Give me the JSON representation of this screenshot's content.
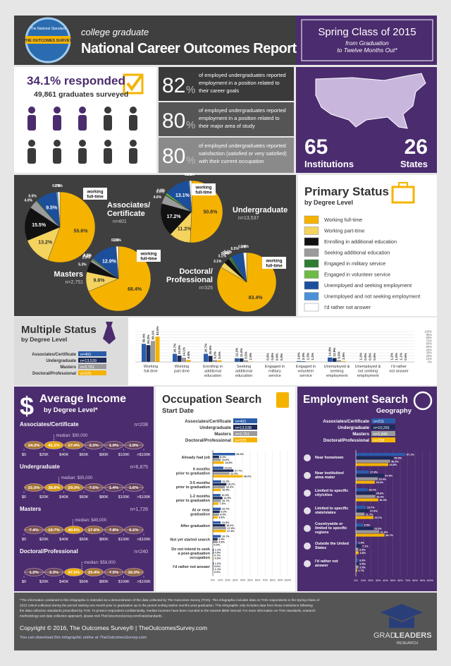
{
  "header": {
    "logo_top": "The National Standard",
    "logo_name": "THE OUTCOMES SURVEY",
    "kicker": "college graduate",
    "title": "National Career Outcomes Report",
    "cohort": "Spring Class of 2015",
    "cohort_sub": [
      "from Graduation",
      "to Twelve Months Out*"
    ]
  },
  "response": {
    "rate_text": "34.1% responded",
    "surveyed": "49,861 graduates surveyed"
  },
  "stats": {
    "items": [
      {
        "value": 82,
        "unit": "%",
        "lines": [
          "of employed undergraduates reported",
          "employment in a position related to",
          "their career goals"
        ]
      },
      {
        "value": 80,
        "unit": "%",
        "lines": [
          "of employed undergraduates reported",
          "employment in a position related to",
          "their major area of study"
        ]
      },
      {
        "value": 80,
        "unit": "%",
        "lines": [
          "of employed undergraduates reported",
          "satisfaction (satisfied or very satisfied)",
          "with their current occupation"
        ]
      }
    ]
  },
  "reach": {
    "institutions": 65,
    "institutions_label": "Institutions",
    "states": 26,
    "states_label": "States"
  },
  "primary_status": {
    "type": "pie",
    "title": "Primary Status",
    "subtitle": "by Degree Level",
    "callout": [
      "working",
      "full-time"
    ],
    "items": [
      {
        "name": "Working full-time",
        "color": "#f5b300"
      },
      {
        "name": "Working part-time",
        "color": "#f4d35e"
      },
      {
        "name": "Enrolling in additional education",
        "color": "#111111"
      },
      {
        "name": "Seeking additional education",
        "color": "#9b9b9b"
      },
      {
        "name": "Engaged in military service",
        "color": "#2e7d32"
      },
      {
        "name": "Engaged in volunteer service",
        "color": "#6dbb45"
      },
      {
        "name": "Unemployed and seeking employment",
        "color": "#1b4f9c"
      },
      {
        "name": "Unemployed and not seeking employment",
        "color": "#4a90d9"
      },
      {
        "name": "I'd rather not answer",
        "color": "#ffffff"
      }
    ],
    "pies": [
      {
        "name": [
          "Associates/",
          "Certificate"
        ],
        "n": "n=401",
        "values": [
          55.6,
          13.2,
          15.5,
          4.0,
          0.5,
          null,
          9.5,
          0.7,
          1.0
        ],
        "value_labels": [
          "55.6%",
          "13.2%",
          "15.5%",
          "4.0%",
          "0.5%",
          null,
          "9.5%",
          "0.7%",
          "1.0%"
        ]
      },
      {
        "name": [
          "Undergraduate"
        ],
        "n": "n=13,537",
        "values": [
          50.8,
          11.2,
          17.2,
          4.6,
          0.5,
          0.9,
          13.1,
          0.6,
          1.1
        ],
        "value_labels": [
          "50.8%",
          "11.2%",
          "17.2%",
          "4.6%",
          "0.5%",
          "0.9%",
          "13.1%",
          "0.6%",
          "1.1%"
        ]
      },
      {
        "name": [
          "Masters"
        ],
        "n": "n=2,751",
        "values": [
          68.4,
          9.8,
          5.3,
          1.3,
          0.2,
          0.5,
          12.9,
          0.3,
          1.1
        ],
        "value_labels": [
          "68.4%",
          "9.8%",
          "5.3%",
          "1.3%",
          "0.2%",
          "0.5%",
          "12.9%",
          "0.3%",
          "1.1%"
        ]
      },
      {
        "name": [
          "Doctoral/",
          "Professional"
        ],
        "n": "n=325",
        "values": [
          83.4,
          3.1,
          3.1,
          0.3,
          1.2,
          0.3,
          6.5,
          0.3,
          1.8
        ],
        "value_labels": [
          "83.4%",
          "3.1%",
          "3.1%",
          "0.3%",
          "1.2%",
          "0.3%",
          "6.5%",
          "0.3%",
          "1.8%"
        ]
      }
    ]
  },
  "multiple_status": {
    "type": "bar",
    "title": "Multiple Status",
    "subtitle": "by Degree Level",
    "ylim": [
      0,
      100
    ],
    "yticks": [
      {
        "value": 0,
        "label": "0%"
      },
      {
        "value": 10,
        "label": "10%"
      },
      {
        "value": 20,
        "label": "20%"
      },
      {
        "value": 30,
        "label": "30%"
      },
      {
        "value": 40,
        "label": "40%"
      },
      {
        "value": 50,
        "label": "50%"
      },
      {
        "value": 60,
        "label": "60%"
      },
      {
        "value": 70,
        "label": "70%"
      },
      {
        "value": 80,
        "label": "80%"
      },
      {
        "value": 90,
        "label": "90%"
      },
      {
        "value": 100,
        "label": "100%"
      }
    ],
    "categories": [
      [
        "Working",
        "full-time"
      ],
      [
        "Working",
        "part-time"
      ],
      [
        "Enrolling in",
        "additional",
        "education"
      ],
      [
        "Seeking",
        "additional",
        "education"
      ],
      [
        "Engaged in",
        "military",
        "service"
      ],
      [
        "Engaged in",
        "volunteer",
        "service"
      ],
      [
        "Unemployed &",
        "seeking",
        "employment"
      ],
      [
        "Unemployed &",
        "not seeking",
        "employment"
      ],
      [
        "I'd rather",
        "not answer"
      ]
    ],
    "series": [
      {
        "name": "Associates/Certificate",
        "n": "n=401",
        "color": "#2a5caa",
        "values": [
          59.4,
          26.7,
          26.7,
          12.2,
          0.5,
          3.0,
          14.8,
          1.2,
          1.2
        ],
        "value_labels": [
          "59.4%",
          "26.7%",
          "26.7%",
          "12.2%",
          "0.5%",
          "3.0%",
          "14.8%",
          "1.2%",
          "1.2%"
        ]
      },
      {
        "name": "Undergraduate",
        "n": "n=13,539",
        "color": "#1c2b57",
        "values": [
          55.3,
          20.8,
          20.0,
          11.6,
          0.8,
          2.0,
          12.9,
          0.5,
          1.0
        ],
        "value_labels": [
          "55.3%",
          "20.8%",
          "20.0%",
          "11.6%",
          "0.8%",
          "2.0%",
          "12.9%",
          "0.5%",
          "1.0%"
        ]
      },
      {
        "name": "Masters",
        "n": "n=2,751",
        "color": "#9a9a9a",
        "values": [
          69.1,
          14.1,
          6.2,
          5.5,
          0.0,
          1.5,
          5.9,
          0.5,
          1.1
        ],
        "value_labels": [
          "69.1%",
          "14.1%",
          "6.2%",
          "5.5%",
          "0.0%",
          "1.5%",
          "5.9%",
          "0.5%",
          "1.1%"
        ]
      },
      {
        "name": "Doctoral/Professional",
        "n": "n=325",
        "color": "#f5b300",
        "values": [
          83.5,
          6.8,
          5.5,
          1.5,
          0.0,
          1.2,
          2.8,
          0.5,
          0.6
        ],
        "value_labels": [
          "83.5%",
          "6.8%",
          "5.5%",
          "1.5%",
          "0.0%",
          "1.2%",
          "2.8%",
          "0.5%",
          "0.6%"
        ]
      }
    ]
  },
  "income": {
    "type": "histogram",
    "title_icon": "$",
    "title": "Average Income",
    "subtitle": "by Degree Level*",
    "bins": [
      0,
      20000,
      40000,
      60000,
      80000,
      100000,
      120000
    ],
    "xlim": [
      0,
      120000
    ],
    "xticks": [
      {
        "value": 0,
        "label": "$0"
      },
      {
        "value": 20000,
        "label": "$20K"
      },
      {
        "value": 40000,
        "label": "$40K"
      },
      {
        "value": 60000,
        "label": "$60K"
      },
      {
        "value": 80000,
        "label": "$80K"
      },
      {
        "value": 100000,
        "label": "$100K"
      },
      {
        "value": 120000,
        "label": ">$100K"
      }
    ],
    "levels": [
      {
        "name": "Associates/Certificate",
        "n": "n=208",
        "median": {
          "value": 30000,
          "label": "median: $30,000"
        },
        "values": [
          24.2,
          45.2,
          27.4,
          3.3,
          1.0,
          1.9
        ],
        "value_labels": [
          "24.2%",
          "45.2%",
          "27.4%",
          "3.3%",
          "1.0%",
          "1.9%"
        ]
      },
      {
        "name": "Undergraduate",
        "n": "n=6,875",
        "median": {
          "value": 35000,
          "label": "median: $35,000"
        },
        "values": [
          21.5,
          38.8,
          29.3,
          7.5,
          1.4,
          1.6
        ],
        "value_labels": [
          "21.5%",
          "38.8%",
          "29.3%",
          "7.5%",
          "1.4%",
          "1.6%"
        ]
      },
      {
        "name": "Masters",
        "n": "n=1,726",
        "median": {
          "value": 49000,
          "label": "median: $49,000"
        },
        "values": [
          7.4,
          19.7,
          40.6,
          17.6,
          7.8,
          6.1
        ],
        "value_labels": [
          "7.4%",
          "19.7%",
          "40.6%",
          "17.6%",
          "7.8%",
          "6.1%"
        ]
      },
      {
        "name": "Doctoral/Professional",
        "n": "n=240",
        "median": {
          "value": 58000,
          "label": "median: $58,000"
        },
        "values": [
          1.2,
          3.3,
          47.6,
          23.4,
          7.5,
          16.3
        ],
        "value_labels": [
          "1.2%",
          "3.3%",
          "47.6%",
          "23.4%",
          "7.5%",
          "16.3%"
        ]
      }
    ]
  },
  "occupation_search": {
    "type": "hbar",
    "title": "Occupation Search",
    "subtitle": "Start Date",
    "xlim": [
      0,
      100
    ],
    "xticks": [
      {
        "value": 0,
        "label": "0%"
      },
      {
        "value": 10,
        "label": "10%"
      },
      {
        "value": 20,
        "label": "20%"
      },
      {
        "value": 30,
        "label": "30%"
      },
      {
        "value": 40,
        "label": "40%"
      },
      {
        "value": 50,
        "label": "50%"
      },
      {
        "value": 60,
        "label": "60%"
      },
      {
        "value": 70,
        "label": "70%"
      },
      {
        "value": 80,
        "label": "80%"
      },
      {
        "value": 90,
        "label": "90%"
      },
      {
        "value": 100,
        "label": "100%"
      }
    ],
    "categories": [
      [
        "Already had job"
      ],
      [
        "6 months",
        "prior to graduation"
      ],
      [
        "3-5 months",
        "prior to graduation"
      ],
      [
        "1-2 months",
        "prior to graduation"
      ],
      [
        "At or near",
        "graduation"
      ],
      [
        "After graduation"
      ],
      [
        "Not yet started search"
      ],
      [
        "Do not intend to seek",
        "a post-graduation",
        "occupation"
      ],
      [
        "I'd rather not answer"
      ]
    ],
    "series": [
      {
        "name": "Associates/Certificate",
        "n": "n=401",
        "color": "#2a5caa",
        "values": [
          29.9,
          14.2,
          11.2,
          10.2,
          10.7,
          10.5,
          10.7,
          1.2,
          1.2
        ],
        "value_labels": [
          "29.9%",
          "14.2%",
          "11.2%",
          "10.2%",
          "10.7%",
          "10.5%",
          "10.7%",
          "1.2%",
          "1.2%"
        ]
      },
      {
        "name": "Undergraduate",
        "n": "n=13,538",
        "color": "#1c2b57",
        "values": [
          8.3,
          27.7,
          18.2,
          12.9,
          9.3,
          16.6,
          6.4,
          0.9,
          0.6
        ],
        "value_labels": [
          "8.3%",
          "27.7%",
          "18.2%",
          "12.9%",
          "9.3%",
          "16.6%",
          "6.4%",
          "0.9%",
          "0.6%"
        ]
      },
      {
        "name": "Masters",
        "n": "n=2,751",
        "color": "#9a9a9a",
        "values": [
          10.6,
          22.3,
          16.3,
          10.7,
          8.4,
          17.9,
          6.5,
          0.7,
          1.1
        ],
        "value_labels": [
          "10.6%",
          "22.3%",
          "16.3%",
          "10.7%",
          "8.4%",
          "17.9%",
          "6.5%",
          "0.7%",
          "1.1%"
        ]
      },
      {
        "name": "Doctoral/Professional",
        "n": "n=325",
        "color": "#f5b300",
        "values": [
          14.8,
          40.0,
          10.9,
          7.6,
          6.6,
          17.5,
          0.0,
          0.9,
          0.3
        ],
        "value_labels": [
          "14.8%",
          "40.0%",
          "10.9%",
          "7.6%",
          "6.6%",
          "17.5%",
          "0.0%",
          "0.9%",
          "0.3%"
        ]
      }
    ]
  },
  "employment_search": {
    "type": "hbar",
    "title": "Employment Search",
    "subtitle": "Geography",
    "xlim": [
      0,
      100
    ],
    "xticks": [
      {
        "value": 0,
        "label": "0%"
      },
      {
        "value": 10,
        "label": "10%"
      },
      {
        "value": 20,
        "label": "20%"
      },
      {
        "value": 30,
        "label": "30%"
      },
      {
        "value": 40,
        "label": "40%"
      },
      {
        "value": 50,
        "label": "50%"
      },
      {
        "value": 60,
        "label": "60%"
      },
      {
        "value": 70,
        "label": "70%"
      },
      {
        "value": 80,
        "label": "80%"
      },
      {
        "value": 90,
        "label": "90%"
      },
      {
        "value": 100,
        "label": "100%"
      }
    ],
    "categories": [
      [
        "Near hometown"
      ],
      [
        "Near institution/",
        "alma mater"
      ],
      [
        "Limited to specific",
        "city/cities"
      ],
      [
        "Limited to specific",
        "state/states"
      ],
      [
        "Countrywide or",
        "limited to specific",
        "regions"
      ],
      [
        "Outside the United",
        "States"
      ],
      [
        "I'd rather not",
        "answer"
      ]
    ],
    "series": [
      {
        "name": "Associates/Certificate",
        "n": "n=211",
        "color": "#2a5caa",
        "values": [
          67.1,
          17.8,
          16.1,
          13.7,
          9.5,
          1.9,
          3.3
        ],
        "value_labels": [
          "67.1%",
          "17.8%",
          "16.1%",
          "13.7%",
          "9.5%",
          "1.9%",
          "3.3%"
        ]
      },
      {
        "name": "Undergraduate",
        "n": "n=10,291",
        "color": "#1c2b57",
        "values": [
          50.5,
          37.9,
          25.8,
          17.6,
          23.3,
          7.1,
          3.5
        ],
        "value_labels": [
          "50.5%",
          "37.9%",
          "25.8%",
          "17.6%",
          "23.3%",
          "7.1%",
          "3.5%"
        ]
      },
      {
        "name": "Masters",
        "n": "n=1,846",
        "color": "#9a9a9a",
        "values": [
          46.3,
          29.4,
          26.4,
          11.7,
          31.6,
          3.3,
          3.5
        ],
        "value_labels": [
          "46.3%",
          "29.4%",
          "26.4%",
          "11.7%",
          "31.6%",
          "3.3%",
          "3.5%"
        ]
      },
      {
        "name": "Doctoral/Professional",
        "n": "n=238",
        "color": "#f5b300",
        "values": [
          43.8,
          25.6,
          30.3,
          23.7,
          38.7,
          3.8,
          1.7
        ],
        "value_labels": [
          "43.8%",
          "25.6%",
          "30.3%",
          "23.7%",
          "38.7%",
          "3.8%",
          "1.7%"
        ]
      }
    ]
  },
  "footer": {
    "note": [
      "*The information contained in this infographic is intended as a demonstration of the data collected by The Outcomes Survey (TOS). This infographic includes data on TOS respondents in the Spring Class of",
      "2015 cohort collected during the period starting one month prior to graduation up to the period ending twelve months post-graduation. This infographic only includes data from those institutions following",
      "the data collection standards prescribed by TOS. To protect respondent confidentiality, median incomes have been rounded to the nearest $500 interval. For more information on TOS standards, research",
      "methodology and data collection approach, please visit TheOutcomesSurvey.com/DataStandards."
    ],
    "copyright": "Copyright © 2016, The Outcomes Survey®  |  TheOutcomesSurvey.com",
    "download": "You can download this infographic online at TheOutcomesSurvey.com.",
    "logo_grad": "GRAD",
    "logo_leaders": "LEADERS",
    "logo_research": "RESEARCH"
  }
}
